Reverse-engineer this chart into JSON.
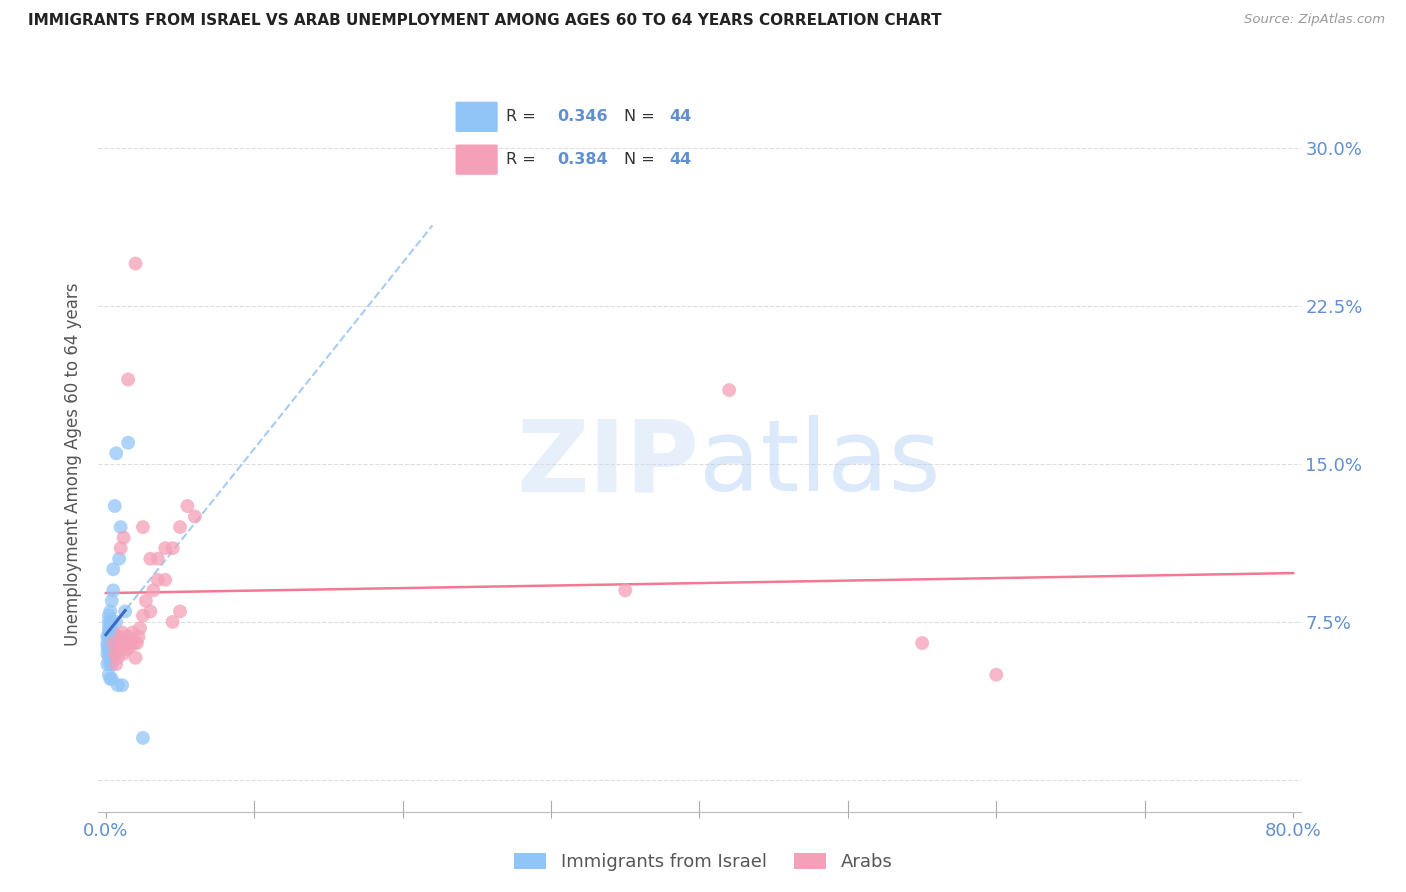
{
  "title": "IMMIGRANTS FROM ISRAEL VS ARAB UNEMPLOYMENT AMONG AGES 60 TO 64 YEARS CORRELATION CHART",
  "source": "Source: ZipAtlas.com",
  "ylabel": "Unemployment Among Ages 60 to 64 years",
  "xlim": [
    -0.005,
    0.805
  ],
  "ylim": [
    -0.015,
    0.315
  ],
  "xticks": [
    0.0,
    0.1,
    0.2,
    0.3,
    0.4,
    0.5,
    0.6,
    0.7,
    0.8
  ],
  "ytick_positions": [
    0.0,
    0.075,
    0.15,
    0.225,
    0.3
  ],
  "yticklabels_right": [
    "",
    "7.5%",
    "15.0%",
    "22.5%",
    "30.0%"
  ],
  "blue_color": "#92C5F7",
  "pink_color": "#F4A0B8",
  "blue_line_color": "#3060C0",
  "blue_dash_color": "#90C0F0",
  "pink_line_color": "#F06080",
  "axis_label_color": "#6090D0",
  "title_color": "#222222",
  "grid_color": "#DDDDDD",
  "background_color": "#FFFFFF",
  "israel_x": [
    0.001,
    0.001,
    0.001,
    0.001,
    0.001,
    0.002,
    0.002,
    0.002,
    0.002,
    0.002,
    0.002,
    0.002,
    0.002,
    0.003,
    0.003,
    0.003,
    0.003,
    0.003,
    0.003,
    0.003,
    0.003,
    0.003,
    0.003,
    0.004,
    0.004,
    0.004,
    0.004,
    0.004,
    0.004,
    0.005,
    0.005,
    0.005,
    0.005,
    0.006,
    0.006,
    0.007,
    0.007,
    0.008,
    0.009,
    0.01,
    0.011,
    0.013,
    0.015,
    0.025
  ],
  "israel_y": [
    0.055,
    0.06,
    0.063,
    0.065,
    0.068,
    0.05,
    0.058,
    0.062,
    0.068,
    0.07,
    0.072,
    0.075,
    0.078,
    0.048,
    0.055,
    0.06,
    0.063,
    0.065,
    0.068,
    0.07,
    0.072,
    0.075,
    0.08,
    0.048,
    0.055,
    0.065,
    0.07,
    0.075,
    0.085,
    0.06,
    0.07,
    0.09,
    0.1,
    0.068,
    0.13,
    0.075,
    0.155,
    0.045,
    0.105,
    0.12,
    0.045,
    0.08,
    0.16,
    0.02
  ],
  "arab_x": [
    0.005,
    0.006,
    0.007,
    0.008,
    0.009,
    0.01,
    0.01,
    0.011,
    0.012,
    0.013,
    0.014,
    0.015,
    0.016,
    0.017,
    0.018,
    0.019,
    0.02,
    0.021,
    0.022,
    0.023,
    0.025,
    0.027,
    0.03,
    0.032,
    0.035,
    0.04,
    0.045,
    0.05,
    0.055,
    0.06,
    0.025,
    0.03,
    0.035,
    0.04,
    0.045,
    0.05,
    0.35,
    0.42,
    0.55,
    0.6,
    0.02,
    0.015,
    0.012,
    0.01
  ],
  "arab_y": [
    0.065,
    0.06,
    0.055,
    0.058,
    0.062,
    0.065,
    0.068,
    0.07,
    0.06,
    0.065,
    0.062,
    0.068,
    0.063,
    0.065,
    0.07,
    0.065,
    0.058,
    0.065,
    0.068,
    0.072,
    0.078,
    0.085,
    0.08,
    0.09,
    0.105,
    0.095,
    0.11,
    0.12,
    0.13,
    0.125,
    0.12,
    0.105,
    0.095,
    0.11,
    0.075,
    0.08,
    0.09,
    0.185,
    0.065,
    0.05,
    0.245,
    0.19,
    0.115,
    0.11
  ]
}
